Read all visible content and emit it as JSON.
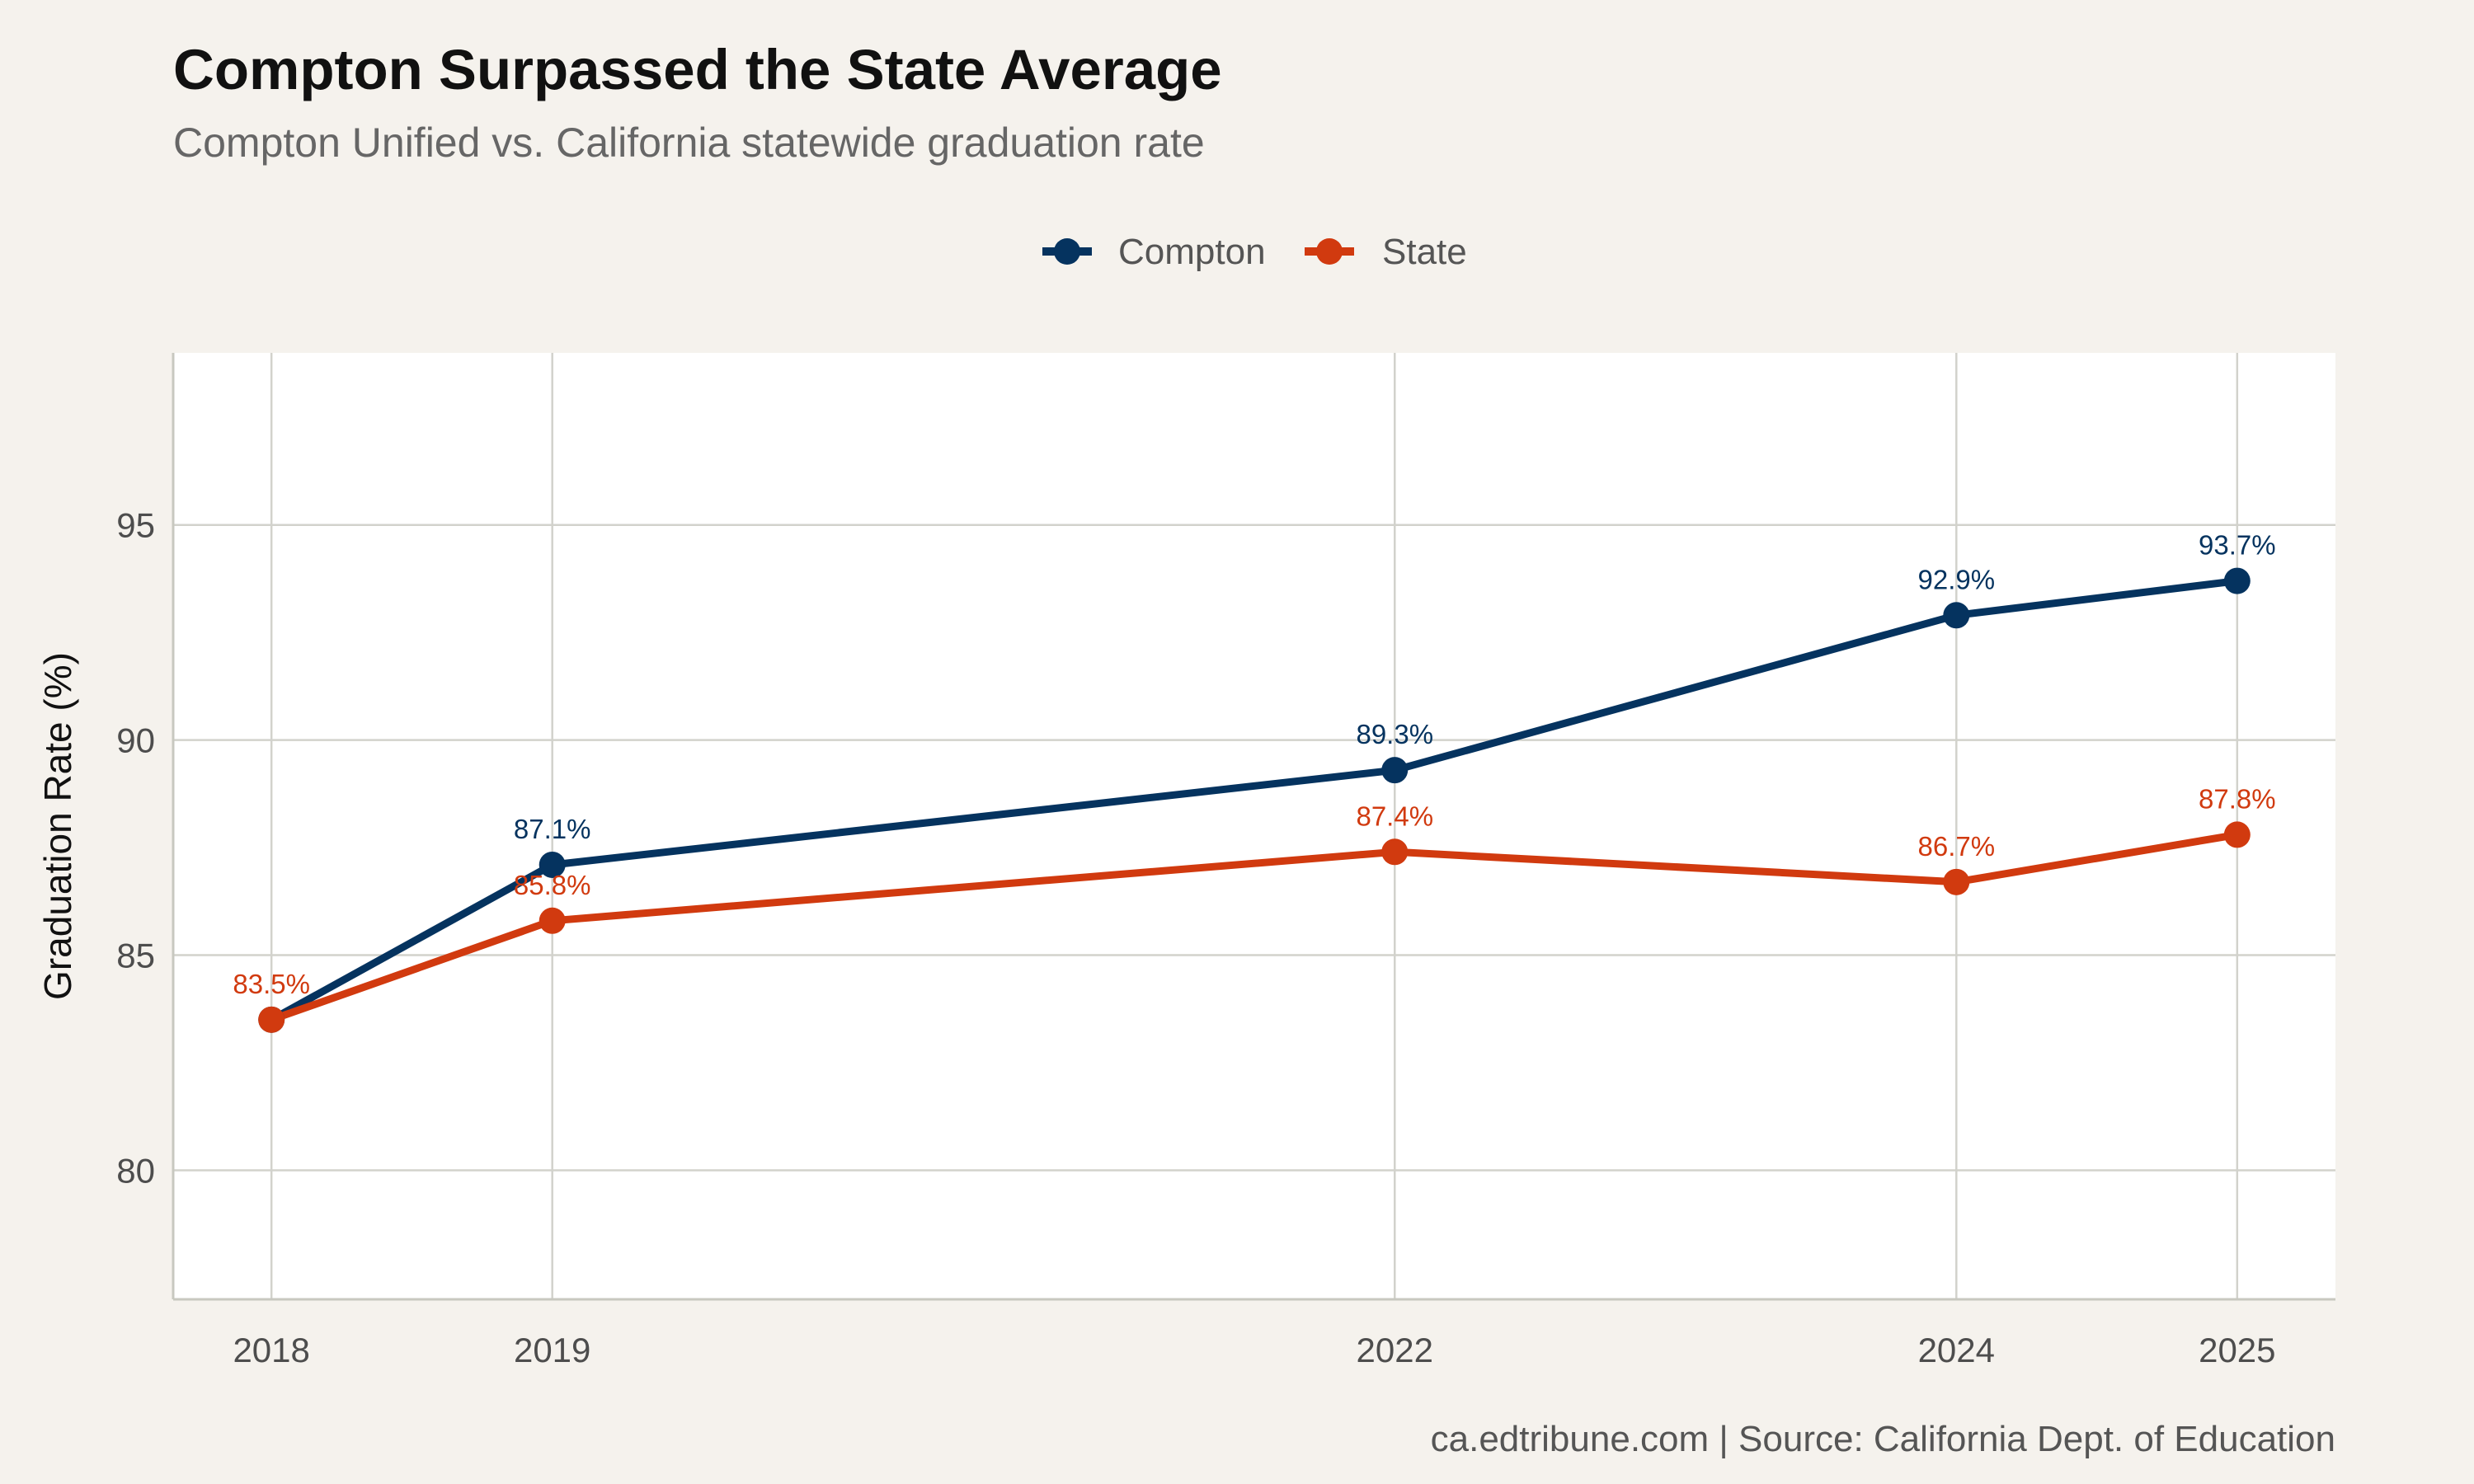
{
  "chart_data": {
    "type": "line",
    "title": "Compton Surpassed the State Average",
    "subtitle": "Compton Unified vs. California statewide graduation rate",
    "xlabel": "",
    "ylabel": "Graduation Rate (%)",
    "caption": "ca.edtribune.com | Source: California Dept. of Education",
    "x": [
      2018,
      2019,
      2022,
      2024,
      2025
    ],
    "x_tick_labels": [
      "2018",
      "2019",
      "2022",
      "2024",
      "2025"
    ],
    "xlim": [
      2017.65,
      2025.35
    ],
    "ylim": [
      77,
      99
    ],
    "y_ticks": [
      80,
      85,
      90,
      95
    ],
    "y_tick_labels": [
      "80",
      "85",
      "90",
      "95"
    ],
    "grid": true,
    "legend_position": "top",
    "series": [
      {
        "name": "Compton",
        "color": "#05335f",
        "values": [
          83.5,
          87.1,
          89.3,
          92.9,
          93.7
        ],
        "labels": [
          "",
          "87.1%",
          "89.3%",
          "92.9%",
          "93.7%"
        ]
      },
      {
        "name": "State",
        "color": "#d13a0f",
        "values": [
          83.5,
          85.8,
          87.4,
          86.7,
          87.8
        ],
        "labels": [
          "83.5%",
          "85.8%",
          "87.4%",
          "86.7%",
          "87.8%"
        ]
      }
    ]
  }
}
